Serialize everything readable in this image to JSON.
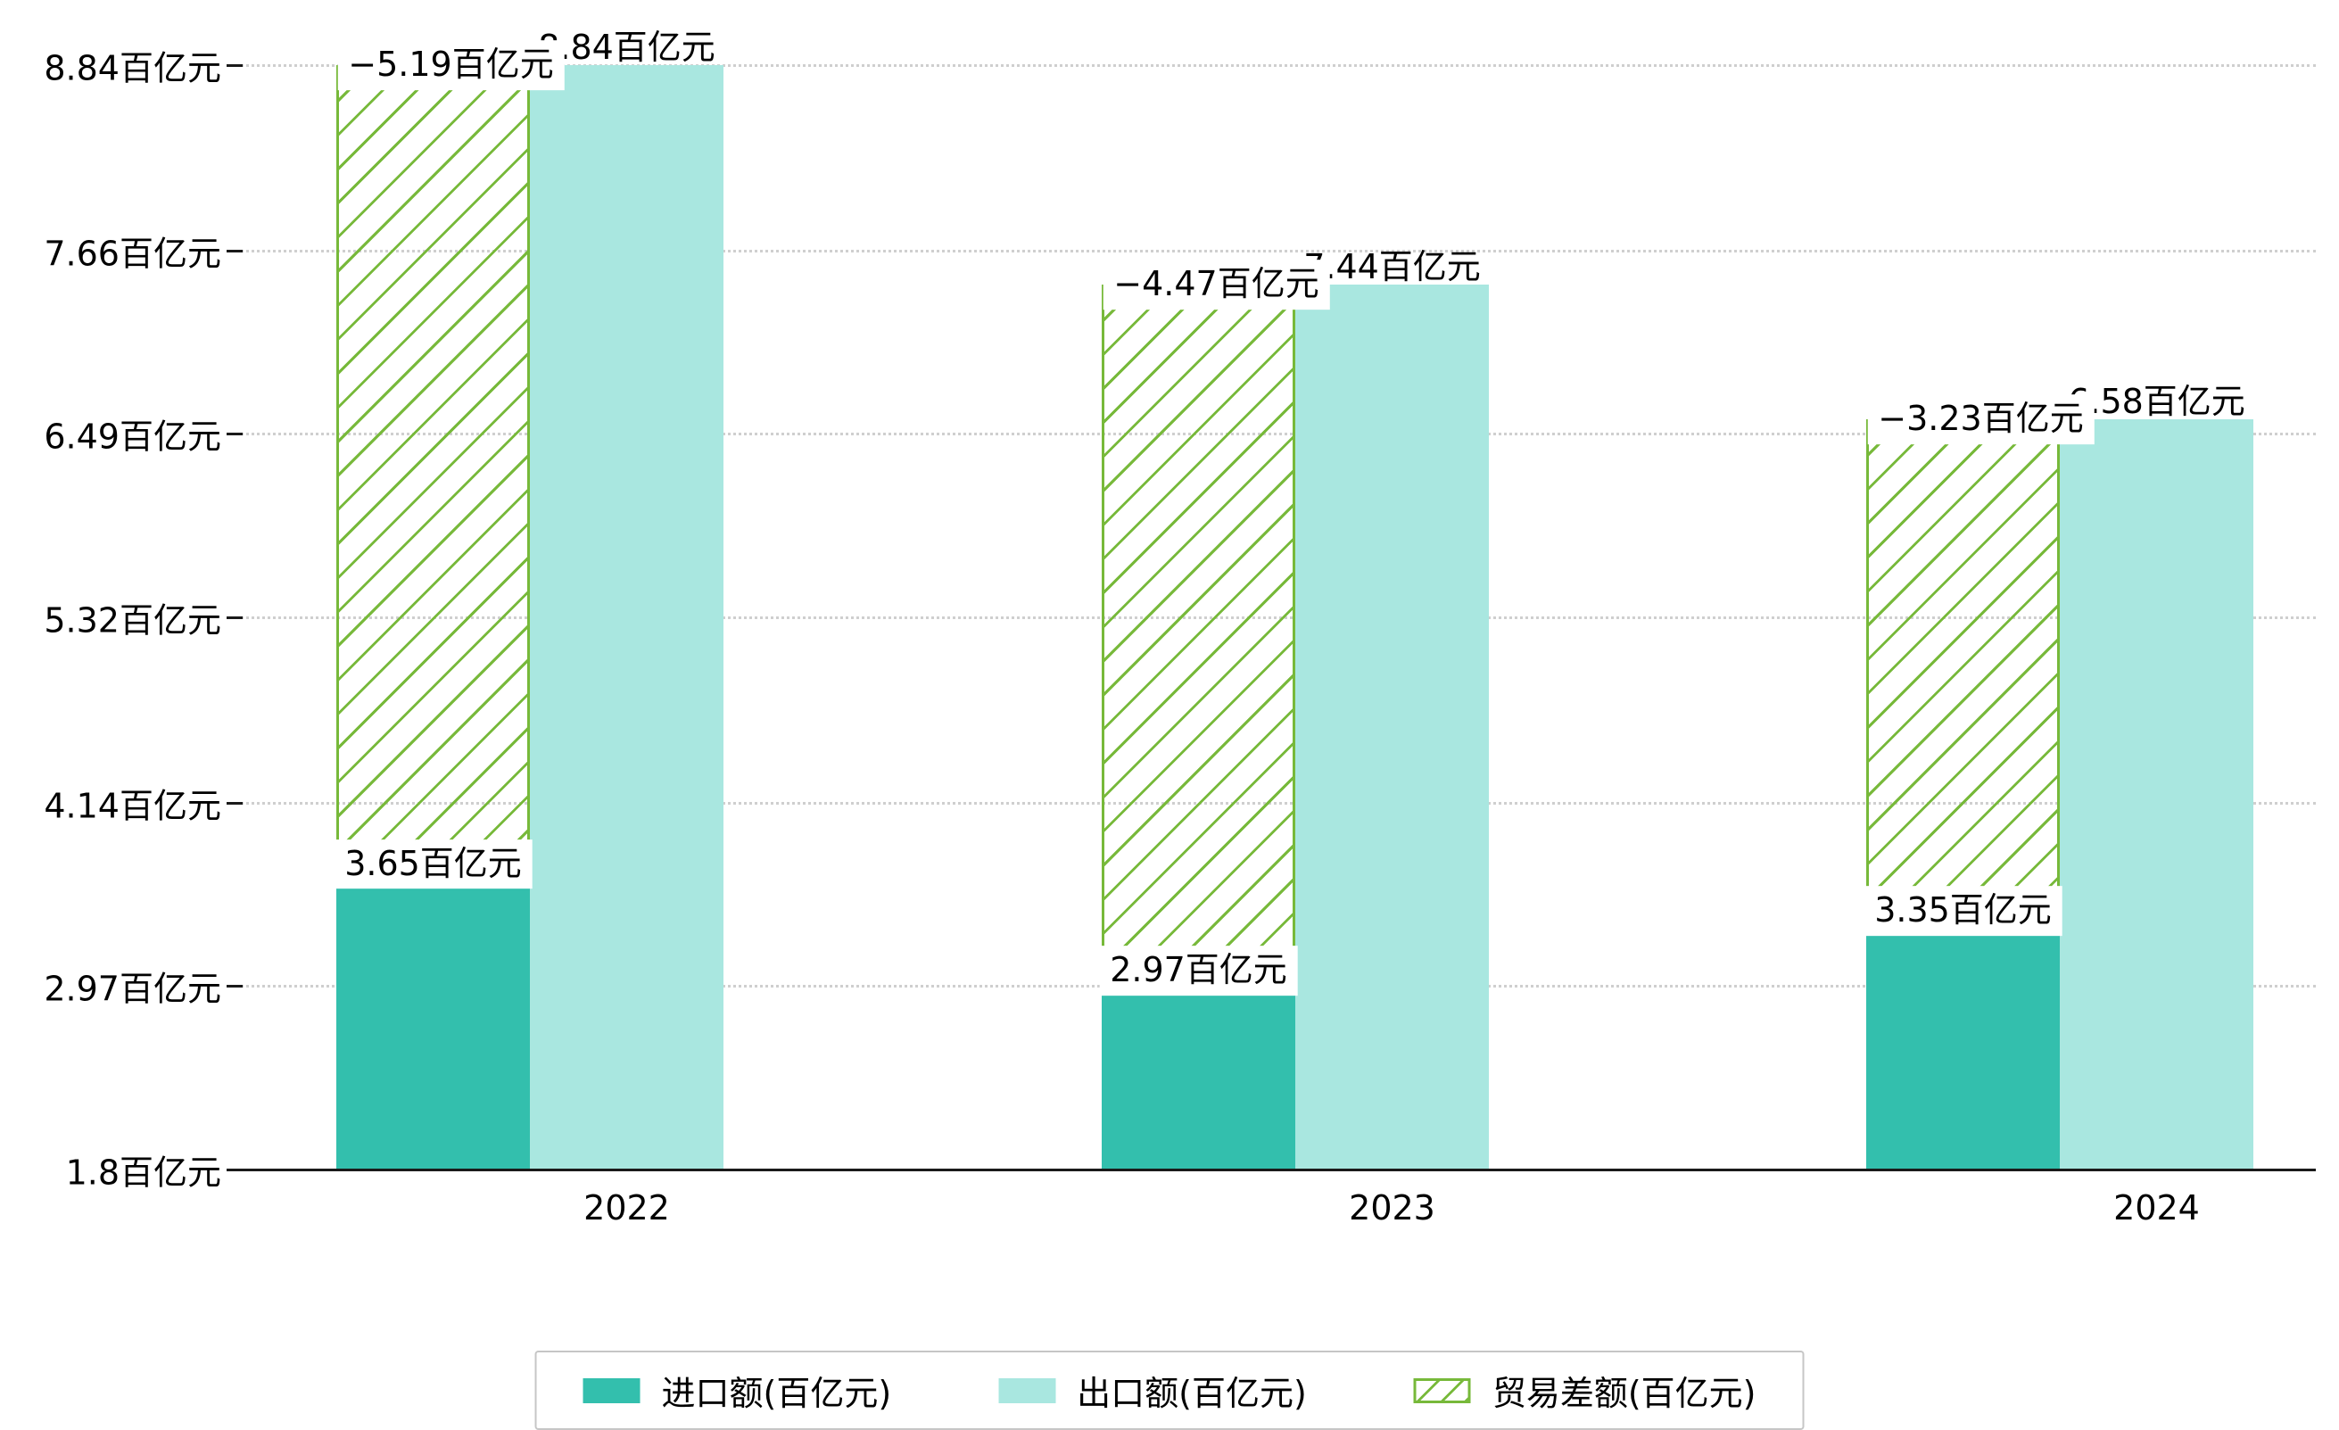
{
  "chart_data": {
    "type": "bar",
    "categories": [
      "2022",
      "2023",
      "2024"
    ],
    "series": [
      {
        "name": "进口额(百亿元)",
        "values": [
          3.65,
          2.97,
          3.35
        ],
        "color": "#33bfad",
        "pattern": "solid"
      },
      {
        "name": "出口额(百亿元)",
        "values": [
          8.84,
          7.44,
          6.58
        ],
        "color": "#a9e7e0",
        "pattern": "solid"
      },
      {
        "name": "贸易差额(百亿元)",
        "values": [
          -5.19,
          -4.47,
          -3.23
        ],
        "color": "#77b93a",
        "pattern": "diagonal-hatch"
      }
    ],
    "annotations": {
      "import_labels": [
        "3.65百亿元",
        "2.97百亿元",
        "3.35百亿元"
      ],
      "export_labels": [
        "8.84百亿元",
        "7.44百亿元",
        "6.58百亿元"
      ],
      "balance_labels": [
        "−5.19百亿元",
        "−4.47百亿元",
        "−3.23百亿元"
      ]
    },
    "y_axis": {
      "tick_labels": [
        "8.84百亿元",
        "7.66百亿元",
        "6.49百亿元",
        "5.32百亿元",
        "4.14百亿元",
        "2.97百亿元",
        "1.8百亿元"
      ],
      "tick_values": [
        8.84,
        7.66,
        6.49,
        5.32,
        4.14,
        2.97,
        1.8
      ],
      "range": [
        1.8,
        8.84
      ]
    },
    "x_tick_labels": [
      "2022",
      "2023",
      "2024"
    ],
    "grid": "horizontal-dotted",
    "legend_position": "bottom-center",
    "layout_note": "import bar with trade-deficit hatch stacked on top, export bar adjacent to the right"
  },
  "colors": {
    "import": "#33bfad",
    "export": "#a9e7e0",
    "balance": "#77b93a",
    "grid": "#cfcfcf",
    "axis": "#1a1a1a",
    "background": "#ffffff"
  }
}
